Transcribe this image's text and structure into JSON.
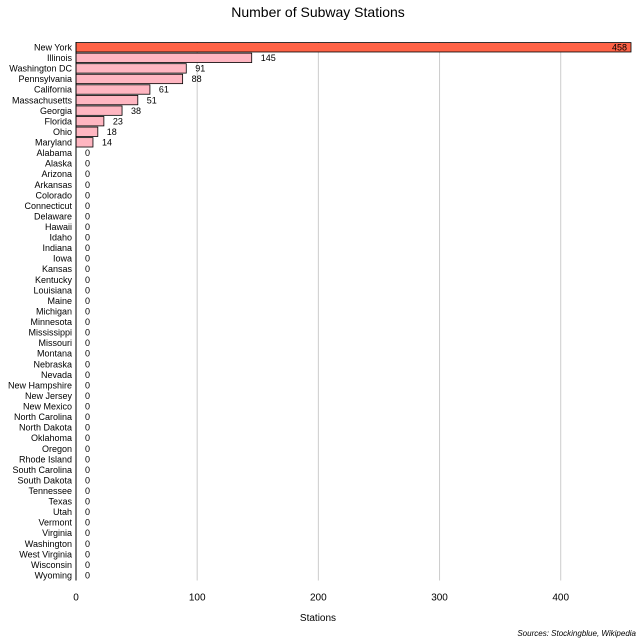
{
  "chart_data": {
    "type": "bar",
    "orientation": "horizontal",
    "title": "Number of Subway Stations",
    "xlabel": "Stations",
    "ylabel": "",
    "xlim": [
      0,
      458
    ],
    "x_ticks": [
      0,
      100,
      200,
      300,
      400
    ],
    "grid": true,
    "categories": [
      "New York",
      "Illinois",
      "Washington DC",
      "Pennsylvania",
      "California",
      "Massachusetts",
      "Georgia",
      "Florida",
      "Ohio",
      "Maryland",
      "Alabama",
      "Alaska",
      "Arizona",
      "Arkansas",
      "Colorado",
      "Connecticut",
      "Delaware",
      "Hawaii",
      "Idaho",
      "Indiana",
      "Iowa",
      "Kansas",
      "Kentucky",
      "Louisiana",
      "Maine",
      "Michigan",
      "Minnesota",
      "Mississippi",
      "Missouri",
      "Montana",
      "Nebraska",
      "Nevada",
      "New Hampshire",
      "New Jersey",
      "New Mexico",
      "North Carolina",
      "North Dakota",
      "Oklahoma",
      "Oregon",
      "Rhode Island",
      "South Carolina",
      "South Dakota",
      "Tennessee",
      "Texas",
      "Utah",
      "Vermont",
      "Virginia",
      "Washington",
      "West Virginia",
      "Wisconsin",
      "Wyoming"
    ],
    "values": [
      458,
      145,
      91,
      88,
      61,
      51,
      38,
      23,
      18,
      14,
      0,
      0,
      0,
      0,
      0,
      0,
      0,
      0,
      0,
      0,
      0,
      0,
      0,
      0,
      0,
      0,
      0,
      0,
      0,
      0,
      0,
      0,
      0,
      0,
      0,
      0,
      0,
      0,
      0,
      0,
      0,
      0,
      0,
      0,
      0,
      0,
      0,
      0,
      0,
      0,
      0
    ],
    "highlight_color": "#ff6347",
    "bar_color": "#ffb6c1",
    "source": "Sources: Stockingblue, Wikipedia"
  }
}
